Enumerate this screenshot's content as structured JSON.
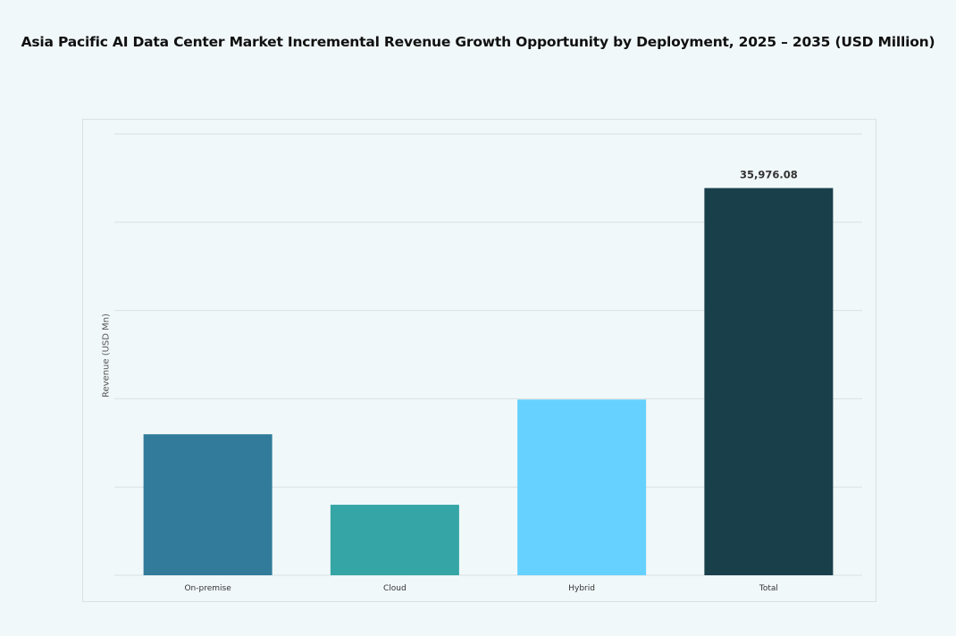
{
  "chart_data": {
    "type": "bar",
    "title": "Asia Pacific AI Data Center Market Incremental Revenue Growth Opportunity by Deployment, 2025 – 2035 (USD Million)",
    "xlabel": "",
    "ylabel": "Revenue (USD Mn)",
    "categories": [
      "On-premise",
      "Cloud",
      "Hybrid",
      "Total"
    ],
    "values": [
      13100,
      6550,
      16326,
      35976.08
    ],
    "data_labels": [
      "",
      "",
      "",
      "35,976.08"
    ],
    "colors": [
      "#327b9a",
      "#35a5a6",
      "#66d1fe",
      "#193f4b"
    ],
    "ylim": [
      0,
      41000
    ],
    "grid": true,
    "legend": "none"
  }
}
